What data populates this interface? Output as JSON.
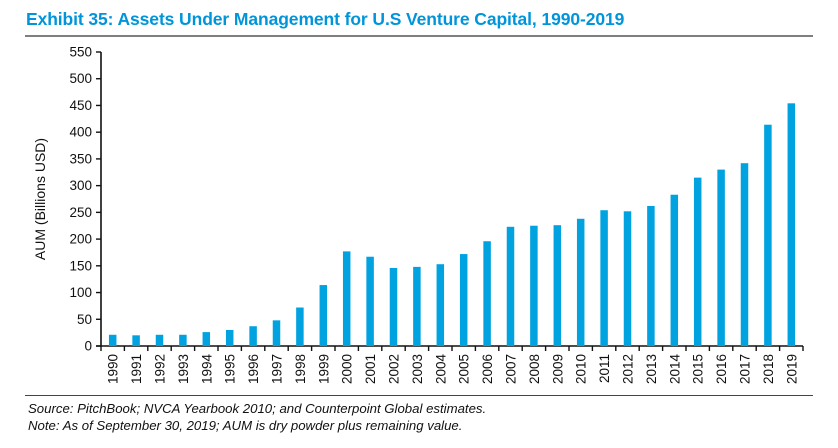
{
  "header": {
    "title": "Exhibit 35: Assets Under Management for U.S Venture Capital, 1990-2019"
  },
  "footer": {
    "source": "Source: PitchBook; NVCA Yearbook 2010; and Counterpoint Global estimates.",
    "note": "Note: As of September 30, 2019; AUM is dry powder plus remaining value."
  },
  "colors": {
    "title": "#0095DA",
    "bar": "#00A3E0"
  },
  "chart_data": {
    "type": "bar",
    "title": "Exhibit 35: Assets Under Management for U.S Venture Capital, 1990-2019",
    "xlabel": "",
    "ylabel": "AUM (Billions USD)",
    "ylim": [
      0,
      550
    ],
    "yticks": [
      0,
      50,
      100,
      150,
      200,
      250,
      300,
      350,
      400,
      450,
      500,
      550
    ],
    "grid": false,
    "legend": "none",
    "categories": [
      "1990",
      "1991",
      "1992",
      "1993",
      "1994",
      "1995",
      "1996",
      "1997",
      "1998",
      "1999",
      "2000",
      "2001",
      "2002",
      "2003",
      "2004",
      "2005",
      "2006",
      "2007",
      "2008",
      "2009",
      "2010",
      "2011",
      "2012",
      "2013",
      "2014",
      "2015",
      "2016",
      "2017",
      "2018",
      "2019"
    ],
    "values": [
      21,
      20,
      21,
      21,
      26,
      30,
      37,
      48,
      72,
      114,
      177,
      167,
      146,
      148,
      153,
      172,
      196,
      223,
      225,
      226,
      238,
      254,
      252,
      262,
      283,
      315,
      330,
      342,
      414,
      454
    ]
  }
}
